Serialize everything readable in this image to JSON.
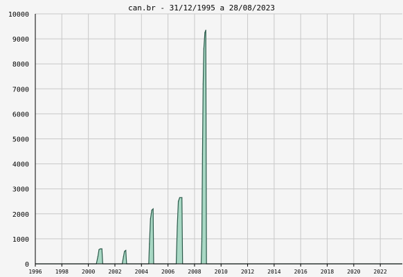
{
  "chart_data": {
    "type": "area",
    "title": "can.br - 31/12/1995 a 28/08/2023",
    "xlabel": "",
    "ylabel": "",
    "xlim": [
      1996,
      2023.66
    ],
    "ylim": [
      0,
      10000
    ],
    "x_ticks": [
      "1996",
      "1998",
      "2000",
      "2002",
      "2004",
      "2006",
      "2008",
      "2010",
      "2012",
      "2014",
      "2016",
      "2018",
      "2020",
      "2022"
    ],
    "y_ticks": [
      "0",
      "1000",
      "2000",
      "3000",
      "4000",
      "5000",
      "6000",
      "7000",
      "8000",
      "9000",
      "10000"
    ],
    "grid": true,
    "line_color": "#2a5a4a",
    "fill_color": "#a8d8c4",
    "series": [
      {
        "points": [
          [
            1996.0,
            0
          ],
          [
            2000.6,
            0
          ],
          [
            2000.72,
            300
          ],
          [
            2000.8,
            570
          ],
          [
            2000.9,
            600
          ],
          [
            2001.02,
            600
          ],
          [
            2001.08,
            0
          ],
          [
            2002.55,
            0
          ],
          [
            2002.65,
            300
          ],
          [
            2002.72,
            500
          ],
          [
            2002.82,
            540
          ],
          [
            2002.88,
            0
          ],
          [
            2004.55,
            0
          ],
          [
            2004.6,
            800
          ],
          [
            2004.68,
            1800
          ],
          [
            2004.78,
            2150
          ],
          [
            2004.88,
            2200
          ],
          [
            2004.92,
            0
          ],
          [
            2006.62,
            0
          ],
          [
            2006.7,
            1500
          ],
          [
            2006.78,
            2500
          ],
          [
            2006.88,
            2650
          ],
          [
            2007.05,
            2650
          ],
          [
            2007.1,
            0
          ],
          [
            2008.5,
            0
          ],
          [
            2008.55,
            900
          ],
          [
            2008.6,
            4400
          ],
          [
            2008.65,
            7200
          ],
          [
            2008.7,
            8600
          ],
          [
            2008.78,
            9250
          ],
          [
            2008.85,
            9350
          ],
          [
            2008.9,
            0
          ],
          [
            2023.66,
            0
          ]
        ]
      }
    ]
  }
}
